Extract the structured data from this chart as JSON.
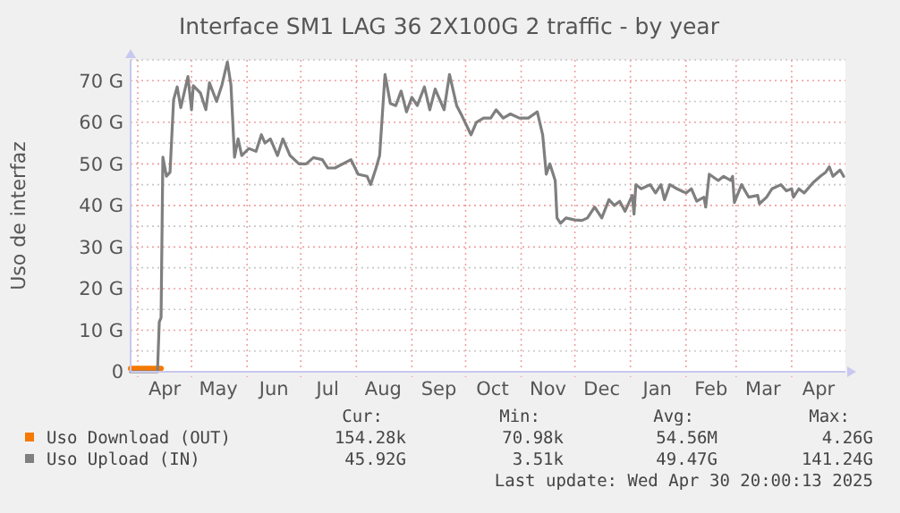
{
  "chart_data": {
    "type": "line",
    "title": "Interface SM1 LAG 36 2X100G 2 traffic - by year",
    "ylabel": "Uso de interfaz",
    "xlim": [
      "2024-03-28",
      "2025-05-01"
    ],
    "xticks": [
      {
        "value": "2024-04-01",
        "label": null
      },
      {
        "value": "2024-04-16",
        "label": "Apr"
      },
      {
        "value": "2024-05-01",
        "label": null
      },
      {
        "value": "2024-05-16",
        "label": "May"
      },
      {
        "value": "2024-06-01",
        "label": null
      },
      {
        "value": "2024-06-16",
        "label": "Jun"
      },
      {
        "value": "2024-07-01",
        "label": null
      },
      {
        "value": "2024-07-16",
        "label": "Jul"
      },
      {
        "value": "2024-08-01",
        "label": null
      },
      {
        "value": "2024-08-16",
        "label": "Aug"
      },
      {
        "value": "2024-09-01",
        "label": null
      },
      {
        "value": "2024-09-16",
        "label": "Sep"
      },
      {
        "value": "2024-10-01",
        "label": null
      },
      {
        "value": "2024-10-16",
        "label": "Oct"
      },
      {
        "value": "2024-11-01",
        "label": null
      },
      {
        "value": "2024-11-16",
        "label": "Nov"
      },
      {
        "value": "2024-12-01",
        "label": null
      },
      {
        "value": "2024-12-16",
        "label": "Dec"
      },
      {
        "value": "2025-01-01",
        "label": null
      },
      {
        "value": "2025-01-16",
        "label": "Jan"
      },
      {
        "value": "2025-02-01",
        "label": null
      },
      {
        "value": "2025-02-15",
        "label": "Feb"
      },
      {
        "value": "2025-03-01",
        "label": null
      },
      {
        "value": "2025-03-16",
        "label": "Mar"
      },
      {
        "value": "2025-04-01",
        "label": null
      },
      {
        "value": "2025-04-16",
        "label": "Apr"
      }
    ],
    "ylim": [
      0,
      75
    ],
    "yticks": [
      {
        "value": 0,
        "label": "0"
      },
      {
        "value": 5,
        "label": null
      },
      {
        "value": 10,
        "label": "10 G"
      },
      {
        "value": 15,
        "label": null
      },
      {
        "value": 20,
        "label": "20 G"
      },
      {
        "value": 25,
        "label": null
      },
      {
        "value": 30,
        "label": "30 G"
      },
      {
        "value": 35,
        "label": null
      },
      {
        "value": 40,
        "label": "40 G"
      },
      {
        "value": 45,
        "label": null
      },
      {
        "value": 50,
        "label": "50 G"
      },
      {
        "value": 55,
        "label": null
      },
      {
        "value": 60,
        "label": "60 G"
      },
      {
        "value": 65,
        "label": null
      },
      {
        "value": 70,
        "label": "70 G"
      },
      {
        "value": 75,
        "label": null
      }
    ],
    "grid": true,
    "legend": "bottom",
    "series": [
      {
        "name": "Uso Download (OUT)",
        "color": "#f57900",
        "x": [
          "2024-03-28",
          "2024-04-14"
        ],
        "values": [
          0.8,
          0.8
        ]
      },
      {
        "name": "Uso Upload (IN)",
        "color": "#7f7f7f",
        "x": [
          "2024-03-28",
          "2024-04-12",
          "2024-04-13",
          "2024-04-14",
          "2024-04-15",
          "2024-04-17",
          "2024-04-19",
          "2024-04-21",
          "2024-04-23",
          "2024-04-25",
          "2024-04-29",
          "2024-05-01",
          "2024-05-02",
          "2024-05-06",
          "2024-05-09",
          "2024-05-11",
          "2024-05-15",
          "2024-05-18",
          "2024-05-21",
          "2024-05-23",
          "2024-05-25",
          "2024-05-27",
          "2024-05-29",
          "2024-06-02",
          "2024-06-06",
          "2024-06-09",
          "2024-06-11",
          "2024-06-14",
          "2024-06-18",
          "2024-06-21",
          "2024-06-25",
          "2024-06-30",
          "2024-07-04",
          "2024-07-08",
          "2024-07-13",
          "2024-07-16",
          "2024-07-20",
          "2024-07-29",
          "2024-08-02",
          "2024-08-07",
          "2024-08-09",
          "2024-08-12",
          "2024-08-14",
          "2024-08-17",
          "2024-08-20",
          "2024-08-23",
          "2024-08-26",
          "2024-08-29",
          "2024-09-01",
          "2024-09-04",
          "2024-09-08",
          "2024-09-11",
          "2024-09-14",
          "2024-09-19",
          "2024-09-22",
          "2024-09-26",
          "2024-09-29",
          "2024-10-04",
          "2024-10-07",
          "2024-10-11",
          "2024-10-15",
          "2024-10-18",
          "2024-10-22",
          "2024-10-26",
          "2024-10-31",
          "2024-11-05",
          "2024-11-10",
          "2024-11-13",
          "2024-11-15",
          "2024-11-17",
          "2024-11-20",
          "2024-11-21",
          "2024-11-23",
          "2024-11-26",
          "2024-12-01",
          "2024-12-05",
          "2024-12-08",
          "2024-12-12",
          "2024-12-16",
          "2024-12-20",
          "2024-12-23",
          "2024-12-26",
          "2024-12-29",
          "2025-01-02",
          "2025-01-03",
          "2025-01-04",
          "2025-01-07",
          "2025-01-12",
          "2025-01-15",
          "2025-01-18",
          "2025-01-20",
          "2025-01-23",
          "2025-01-27",
          "2025-02-01",
          "2025-02-04",
          "2025-02-07",
          "2025-02-11",
          "2025-02-12",
          "2025-02-14",
          "2025-02-19",
          "2025-02-22",
          "2025-02-26",
          "2025-02-27",
          "2025-02-28",
          "2025-03-04",
          "2025-03-08",
          "2025-03-13",
          "2025-03-14",
          "2025-03-18",
          "2025-03-21",
          "2025-03-26",
          "2025-03-29",
          "2025-04-01",
          "2025-04-02",
          "2025-04-05",
          "2025-04-08",
          "2025-04-13",
          "2025-04-17",
          "2025-04-20",
          "2025-04-22",
          "2025-04-24",
          "2025-04-28",
          "2025-04-30"
        ],
        "values": [
          0,
          0,
          12,
          13,
          51.6,
          47,
          48,
          65.4,
          68.5,
          63.5,
          71,
          63,
          68.8,
          67,
          63,
          69.5,
          65,
          69,
          74.5,
          69,
          51.6,
          56,
          52,
          53.7,
          53,
          57,
          55,
          56,
          52,
          56,
          52,
          50,
          50,
          51.5,
          51,
          49,
          49,
          51,
          47.5,
          47,
          45,
          49,
          52,
          71.5,
          64.5,
          64,
          67.5,
          62.5,
          66,
          64,
          68.5,
          63,
          68,
          63,
          71.5,
          64,
          61.5,
          57,
          60,
          61,
          61,
          63,
          61,
          62,
          61,
          61,
          62.5,
          57,
          47.5,
          50,
          46,
          37,
          35.7,
          37,
          36.5,
          36.4,
          37,
          39.6,
          37,
          41.4,
          40,
          41,
          38.6,
          42.4,
          37.9,
          45,
          44,
          45,
          43,
          45,
          41.4,
          45,
          44,
          43,
          44,
          41,
          42,
          39.6,
          47.5,
          46,
          47,
          46,
          47,
          40.7,
          45,
          42,
          42.4,
          40.4,
          42,
          44,
          45,
          43.5,
          44,
          42,
          44,
          43,
          45.5,
          47,
          48,
          49.3,
          47,
          48.5,
          47
        ]
      }
    ],
    "annotations": [
      "Cur:",
      "Min:",
      "Avg:",
      "Max:",
      "154.28k",
      "70.98k",
      "54.56M",
      "4.26G",
      "45.92G",
      "3.51k",
      "49.47G",
      "141.24G",
      "Last update: Wed Apr 30 20:00:13 2025"
    ]
  }
}
